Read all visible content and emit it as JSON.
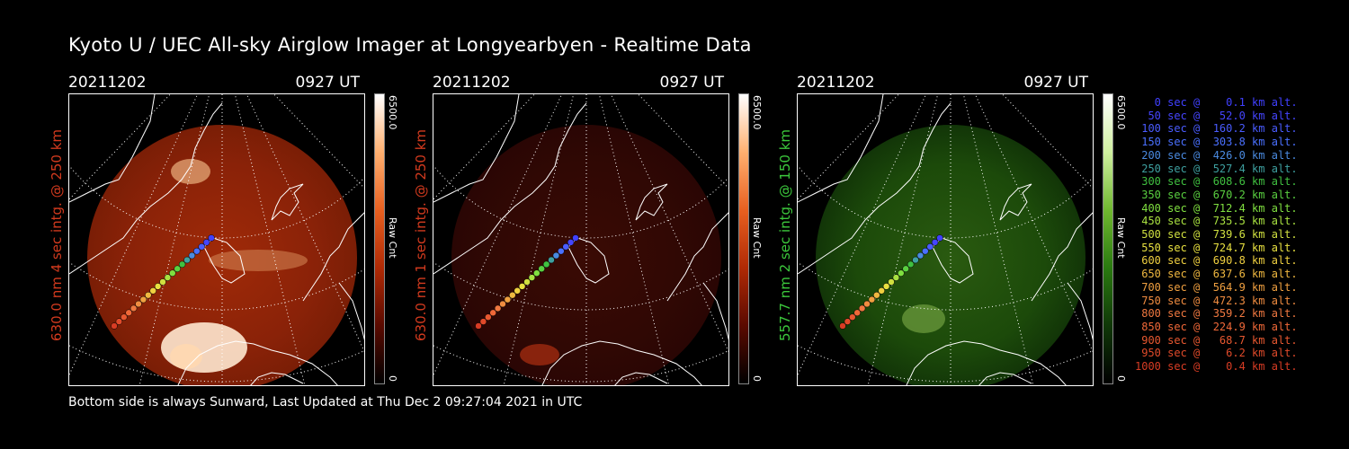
{
  "title": "Kyoto U / UEC All-sky Airglow Imager at Longyearbyen - Realtime Data",
  "footer": "Bottom side is always Sunward, Last Updated at Thu Dec  2 09:27:04 2021 in UTC",
  "panels": [
    {
      "date": "20211202",
      "time": "0927 UT",
      "vlabel": "630.0 nm 4 sec intg. @ 250 km",
      "label_color": "#d23a1e",
      "cbar_max": "6500.0",
      "cbar_min": "0",
      "cbar_unit": "Raw Cnt",
      "palette": "red",
      "brightness": "high"
    },
    {
      "date": "20211202",
      "time": "0927 UT",
      "vlabel": "630.0 nm 1 sec intg. @ 250 km",
      "label_color": "#d23a1e",
      "cbar_max": "6500.0",
      "cbar_min": "0",
      "cbar_unit": "Raw Cnt",
      "palette": "red",
      "brightness": "low"
    },
    {
      "date": "20211202",
      "time": "0927 UT",
      "vlabel": "557.7 nm 2 sec intg. @ 150 km",
      "label_color": "#3cc83c",
      "cbar_max": "6500.0",
      "cbar_min": "0",
      "cbar_unit": "Raw Cnt",
      "palette": "green",
      "brightness": "low"
    }
  ],
  "legend": [
    {
      "text": "   0 sec @    0.1 km alt.",
      "color": "#4040ff"
    },
    {
      "text": "  50 sec @   52.0 km alt.",
      "color": "#4545ff"
    },
    {
      "text": " 100 sec @  160.2 km alt.",
      "color": "#4a5cff"
    },
    {
      "text": " 150 sec @  303.8 km alt.",
      "color": "#4a70ff"
    },
    {
      "text": " 200 sec @  426.0 km alt.",
      "color": "#4a8ae0"
    },
    {
      "text": " 250 sec @  527.4 km alt.",
      "color": "#3ea0a0"
    },
    {
      "text": " 300 sec @  608.6 km alt.",
      "color": "#40c040"
    },
    {
      "text": " 350 sec @  670.2 km alt.",
      "color": "#5ad040"
    },
    {
      "text": " 400 sec @  712.4 km alt.",
      "color": "#80e040"
    },
    {
      "text": " 450 sec @  735.5 km alt.",
      "color": "#a8e040"
    },
    {
      "text": " 500 sec @  739.6 km alt.",
      "color": "#d0e040"
    },
    {
      "text": " 550 sec @  724.7 km alt.",
      "color": "#e8e040"
    },
    {
      "text": " 600 sec @  690.8 km alt.",
      "color": "#f0d040"
    },
    {
      "text": " 650 sec @  637.6 km alt.",
      "color": "#f0b840"
    },
    {
      "text": " 700 sec @  564.9 km alt.",
      "color": "#f0a040"
    },
    {
      "text": " 750 sec @  472.3 km alt.",
      "color": "#f08c40"
    },
    {
      "text": " 800 sec @  359.2 km alt.",
      "color": "#f07840"
    },
    {
      "text": " 850 sec @  224.9 km alt.",
      "color": "#f06838"
    },
    {
      "text": " 900 sec @   68.7 km alt.",
      "color": "#e85830"
    },
    {
      "text": " 950 sec @    6.2 km alt.",
      "color": "#e04a2a"
    },
    {
      "text": "1000 sec @    0.4 km alt.",
      "color": "#d83c24"
    }
  ]
}
